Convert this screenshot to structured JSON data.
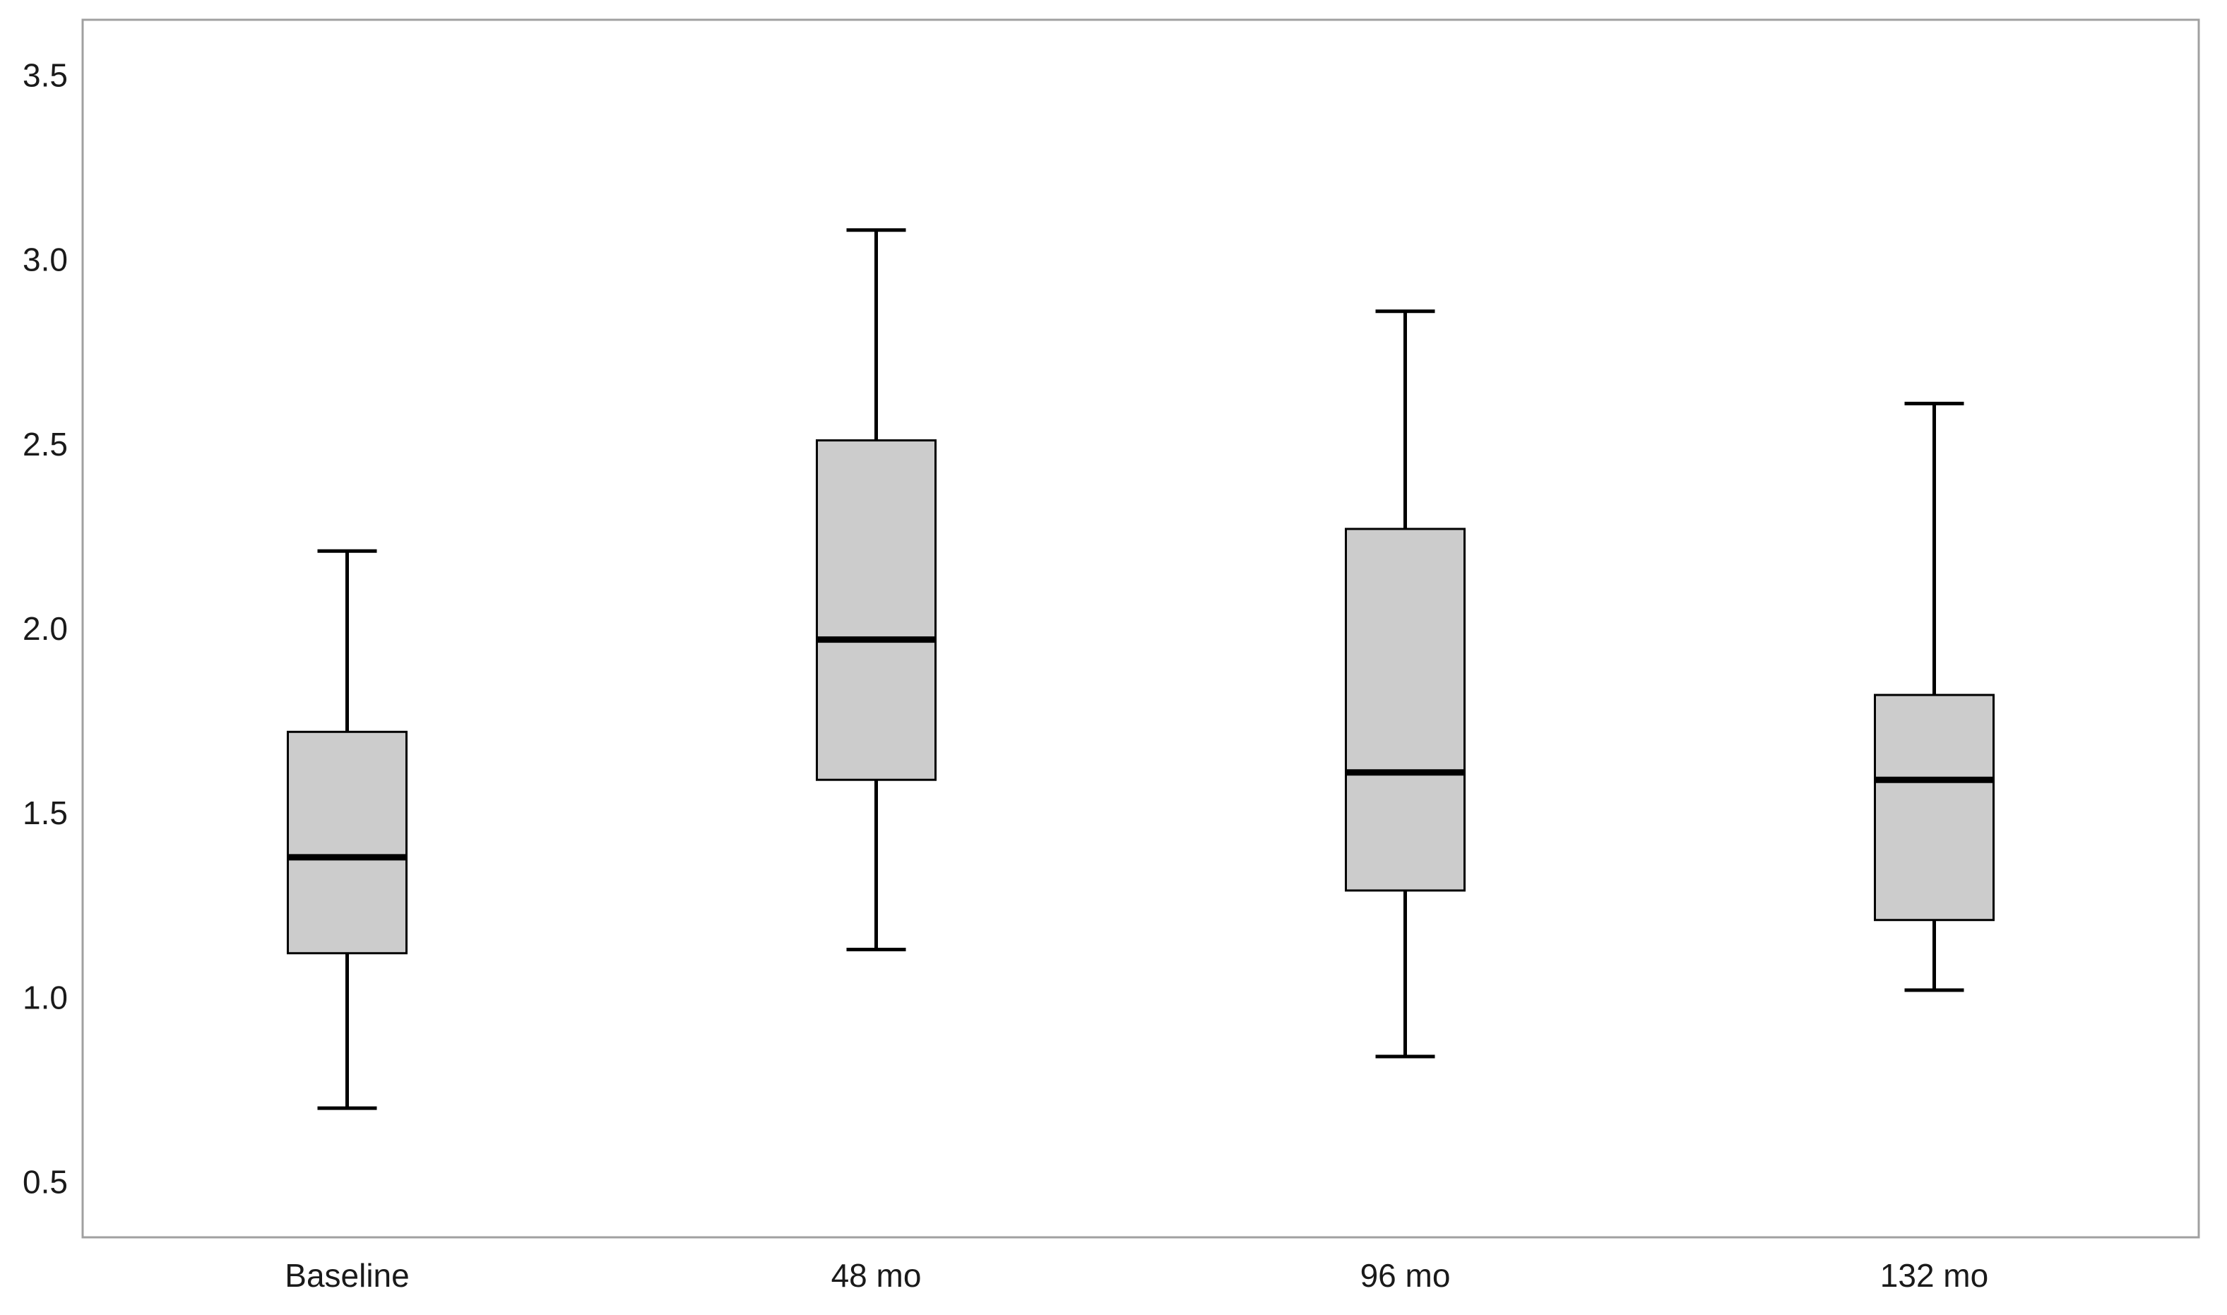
{
  "chart_data": {
    "type": "box",
    "title": "",
    "xlabel": "",
    "ylabel": "",
    "ylim": [
      0.35,
      3.65
    ],
    "yticks": [
      "0.5",
      "1.0",
      "1.5",
      "2.0",
      "2.5",
      "3.0",
      "3.5"
    ],
    "categories": [
      "Baseline",
      "48 mo",
      "96 mo",
      "132 mo"
    ],
    "boxes": [
      {
        "category": "Baseline",
        "whisker_low": 0.7,
        "q1": 1.12,
        "median": 1.38,
        "q3": 1.72,
        "whisker_high": 2.21
      },
      {
        "category": "48 mo",
        "whisker_low": 1.13,
        "q1": 1.59,
        "median": 1.97,
        "q3": 2.51,
        "whisker_high": 3.08
      },
      {
        "category": "96 mo",
        "whisker_low": 0.84,
        "q1": 1.29,
        "median": 1.61,
        "q3": 2.27,
        "whisker_high": 2.86
      },
      {
        "category": "132 mo",
        "whisker_low": 1.02,
        "q1": 1.21,
        "median": 1.59,
        "q3": 1.82,
        "whisker_high": 2.61
      }
    ],
    "box_fill": "#cccccc",
    "line_color": "#000000",
    "frame_color": "#a0a0a0",
    "grid": false,
    "legend": "none"
  }
}
